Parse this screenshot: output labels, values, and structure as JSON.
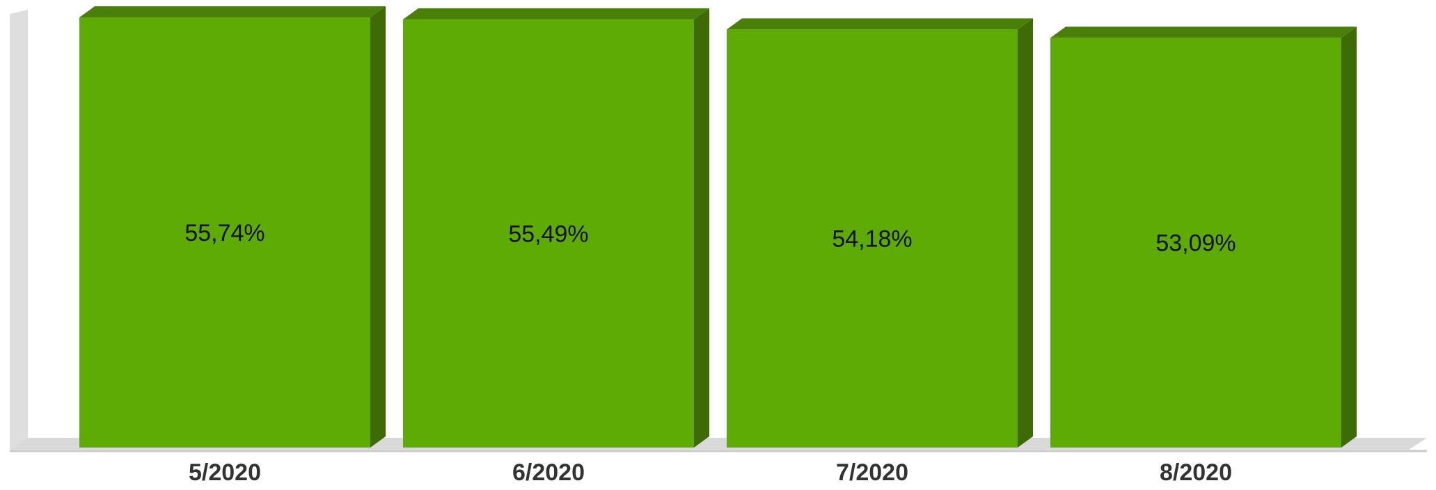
{
  "chart_data": {
    "type": "bar",
    "style": "3d",
    "categories": [
      "5/2020",
      "6/2020",
      "7/2020",
      "8/2020"
    ],
    "values": [
      55.74,
      55.49,
      54.18,
      53.09
    ],
    "data_labels": [
      "55,74%",
      "55,49%",
      "54,18%",
      "53,09%"
    ],
    "ylim": [
      0,
      58
    ],
    "grid": false,
    "legend": "none",
    "title": "",
    "xlabel": "",
    "ylabel": ""
  },
  "colors": {
    "bar_front": "#5fab06",
    "bar_top": "#4a7f0a",
    "bar_side": "#3e6b06",
    "wall": "#dedede",
    "floor": "#d9d9d9",
    "axis": "#c8c8c8"
  }
}
